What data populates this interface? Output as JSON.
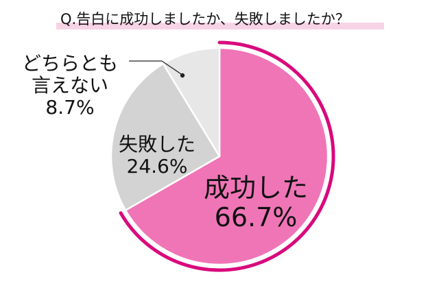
{
  "title": "Q.告白に成功しましたか、失敗しましたか？",
  "colors": {
    "accent_ring": "#d9097c",
    "title_highlight": "#f7d3e6",
    "leader_line": "#222222"
  },
  "chart_data": {
    "type": "pie",
    "title": "Q.告白に成功しましたか、失敗しましたか？",
    "unit": "%",
    "start": "12 o'clock, clockwise",
    "slices": [
      {
        "label": "成功した",
        "value": 66.7,
        "value_label": "66.7%",
        "color": "#f075b6",
        "emphasized": true
      },
      {
        "label": "失敗した",
        "value": 24.6,
        "value_label": "24.6%",
        "color": "#d3d3d3",
        "emphasized": false
      },
      {
        "label": "どちらとも言えない",
        "label_lines": [
          "どちらとも",
          "言えない"
        ],
        "value": 8.7,
        "value_label": "8.7%",
        "color": "#e7e7e7",
        "emphasized": false
      }
    ]
  }
}
